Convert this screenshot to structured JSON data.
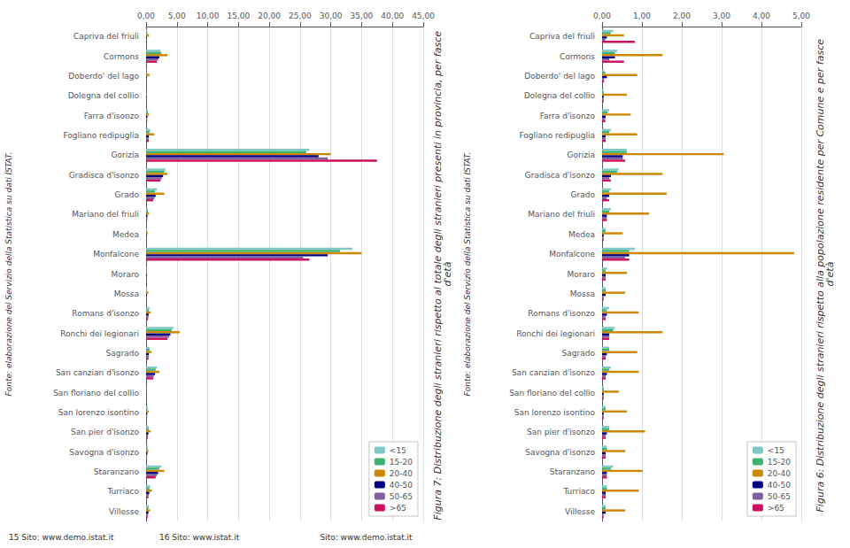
{
  "chart_data": [
    {
      "type": "bar",
      "orientation": "horizontal",
      "title": "Figura 7: Distribuzione degli stranieri rispetto al totale degli stranieri presenti in provincia, per fasce d'età",
      "annotations": [
        "Fonte: elaborazione del Servizio della Statistica su dati ISTAT.",
        "15 Sito: www.demo.istat.it",
        "16 Sito: www.istat.it",
        "    Sito: www.demo.istat.it"
      ],
      "categories": [
        "Capriva del friuli",
        "Cormons",
        "Doberdo' del lago",
        "Dolegna del collio",
        "Farra d'isonzo",
        "Fogliano redipuglia",
        "Gorizia",
        "Gradisca d'isonzo",
        "Grado",
        "Mariano del friuli",
        "Medea",
        "Monfalcone",
        "Moraro",
        "Mossa",
        "Romans d'isonzo",
        "Ronchi dei legionari",
        "Sagrado",
        "San canzian d'isonzo",
        "San floriano del collio",
        "San lorenzo isontino",
        "San pier d'isonzo",
        "Savogna d'isonzo",
        "Staranzano",
        "Turriaco",
        "Villesse"
      ],
      "series": [
        {
          "name": "<15",
          "color": "#80c8c8",
          "values": [
            0.18,
            2.35,
            0.08,
            0.04,
            0.28,
            0.65,
            26.5,
            3.15,
            1.75,
            0.28,
            0.12,
            33.5,
            0.12,
            0.18,
            0.55,
            4.45,
            0.55,
            1.75,
            0.04,
            0.28,
            0.45,
            0.28,
            2.45,
            0.65,
            0.45
          ]
        },
        {
          "name": "15-20",
          "color": "#3cb371",
          "values": [
            0.22,
            2.45,
            0.08,
            0.04,
            0.28,
            0.55,
            26.0,
            2.95,
            1.45,
            0.28,
            0.12,
            31.5,
            0.08,
            0.12,
            0.45,
            4.15,
            0.55,
            1.55,
            0.04,
            0.22,
            0.42,
            0.22,
            2.15,
            0.55,
            0.38
          ]
        },
        {
          "name": "20-40",
          "color": "#cc8800",
          "values": [
            0.48,
            3.45,
            0.55,
            0.12,
            0.48,
            1.35,
            30.0,
            3.45,
            2.95,
            0.48,
            0.28,
            35.0,
            0.18,
            0.38,
            0.75,
            5.45,
            0.85,
            2.15,
            0.08,
            0.42,
            0.75,
            0.38,
            2.95,
            0.95,
            0.65
          ]
        },
        {
          "name": "40-50",
          "color": "#000080",
          "values": [
            0.12,
            2.15,
            0.12,
            0.04,
            0.22,
            0.45,
            28.0,
            2.75,
            1.55,
            0.22,
            0.08,
            29.5,
            0.08,
            0.12,
            0.42,
            3.95,
            0.45,
            1.45,
            0.04,
            0.18,
            0.38,
            0.22,
            1.95,
            0.52,
            0.38
          ]
        },
        {
          "name": "50-65",
          "color": "#8060a0",
          "values": [
            0.08,
            1.95,
            0.08,
            0.04,
            0.18,
            0.45,
            29.5,
            2.55,
            1.35,
            0.22,
            0.08,
            25.5,
            0.08,
            0.08,
            0.38,
            3.75,
            0.45,
            1.25,
            0.04,
            0.18,
            0.32,
            0.18,
            1.75,
            0.45,
            0.32
          ]
        },
        {
          "name": ">65",
          "color": "#cc1060",
          "values": [
            0.08,
            1.75,
            0.04,
            0.08,
            0.18,
            0.45,
            37.5,
            2.35,
            1.15,
            0.18,
            0.08,
            26.5,
            0.08,
            0.08,
            0.32,
            3.45,
            0.38,
            1.15,
            0.04,
            0.12,
            0.28,
            0.12,
            1.55,
            0.38,
            0.28
          ]
        }
      ],
      "xlim": [
        0,
        45.0
      ],
      "xticks": [
        {
          "value": 0,
          "label": "0,00"
        },
        {
          "value": 5.0,
          "label": "5,00"
        },
        {
          "value": 10.0,
          "label": "10,00"
        },
        {
          "value": 15.0,
          "label": "15,00"
        },
        {
          "value": 20.0,
          "label": "20,00"
        },
        {
          "value": 25.0,
          "label": "25,00"
        },
        {
          "value": 30.0,
          "label": "30,00"
        },
        {
          "value": 35.0,
          "label": "35,00"
        },
        {
          "value": 40.0,
          "label": "40,00"
        },
        {
          "value": 45.0,
          "label": "45,00"
        }
      ],
      "grid": true,
      "legend": "lower right"
    },
    {
      "type": "bar",
      "orientation": "horizontal",
      "title": "Figura 6: Distribuzione degli stranieri rispetto alla popolazione residente per Comune e per fasce d'età",
      "annotations": [
        "Fonte: elaborazione del Servizio della Statistica su dati ISTAT."
      ],
      "categories": [
        "Capriva del friuli",
        "Cormons",
        "Doberdo' del lago",
        "Dolegna del collio",
        "Farra d'isonzo",
        "Fogliano redipuglia",
        "Gorizia",
        "Gradisca d'isonzo",
        "Grado",
        "Mariano del friuli",
        "Medea",
        "Monfalcone",
        "Moraro",
        "Mossa",
        "Romans d'isonzo",
        "Ronchi dei legionari",
        "Sagrado",
        "San canzian d'isonzo",
        "San floriano del collio",
        "San lorenzo isontino",
        "San pier d'isonzo",
        "Savogna d'isonzo",
        "Staranzano",
        "Turriaco",
        "Villesse"
      ],
      "series": [
        {
          "name": "<15",
          "color": "#80c8c8",
          "values": [
            0.28,
            0.38,
            0.05,
            0.04,
            0.18,
            0.22,
            0.62,
            0.42,
            0.22,
            0.22,
            0.09,
            0.82,
            0.12,
            0.09,
            0.18,
            0.32,
            0.18,
            0.22,
            0.04,
            0.09,
            0.18,
            0.12,
            0.28,
            0.12,
            0.09
          ]
        },
        {
          "name": "15-20",
          "color": "#3cb371",
          "values": [
            0.22,
            0.32,
            0.08,
            0.04,
            0.14,
            0.18,
            0.62,
            0.38,
            0.18,
            0.18,
            0.09,
            0.68,
            0.09,
            0.09,
            0.12,
            0.28,
            0.18,
            0.18,
            0.04,
            0.09,
            0.18,
            0.12,
            0.22,
            0.12,
            0.09
          ]
        },
        {
          "name": "20-40",
          "color": "#cc8800",
          "values": [
            0.55,
            1.52,
            0.88,
            0.62,
            0.72,
            0.88,
            3.05,
            1.52,
            1.62,
            1.18,
            0.52,
            4.82,
            0.62,
            0.58,
            0.92,
            1.52,
            0.88,
            0.92,
            0.42,
            0.62,
            1.08,
            0.58,
            1.02,
            0.92,
            0.58
          ]
        },
        {
          "name": "40-50",
          "color": "#000080",
          "values": [
            0.12,
            0.32,
            0.12,
            0.04,
            0.09,
            0.09,
            0.52,
            0.22,
            0.18,
            0.12,
            0.04,
            0.68,
            0.09,
            0.09,
            0.12,
            0.18,
            0.12,
            0.12,
            0.04,
            0.04,
            0.12,
            0.09,
            0.12,
            0.09,
            0.09
          ]
        },
        {
          "name": "50-65",
          "color": "#8060a0",
          "values": [
            0.08,
            0.18,
            0.05,
            0.04,
            0.08,
            0.09,
            0.52,
            0.18,
            0.12,
            0.12,
            0.04,
            0.58,
            0.09,
            0.04,
            0.09,
            0.18,
            0.09,
            0.09,
            0.04,
            0.04,
            0.09,
            0.09,
            0.12,
            0.09,
            0.04
          ]
        },
        {
          "name": ">65",
          "color": "#cc1060",
          "values": [
            0.82,
            0.55,
            0.05,
            0.04,
            0.08,
            0.09,
            0.58,
            0.22,
            0.18,
            0.12,
            0.04,
            0.68,
            0.09,
            0.04,
            0.09,
            0.18,
            0.09,
            0.09,
            0.04,
            0.04,
            0.09,
            0.09,
            0.12,
            0.09,
            0.04
          ]
        }
      ],
      "xlim": [
        0,
        5.0
      ],
      "xticks": [
        {
          "value": 0,
          "label": "0,00"
        },
        {
          "value": 1.0,
          "label": "1,00"
        },
        {
          "value": 2.0,
          "label": "2,00"
        },
        {
          "value": 3.0,
          "label": "3,00"
        },
        {
          "value": 4.0,
          "label": "4,00"
        },
        {
          "value": 5.0,
          "label": "5,00"
        }
      ],
      "grid": true,
      "legend": "lower right"
    }
  ]
}
